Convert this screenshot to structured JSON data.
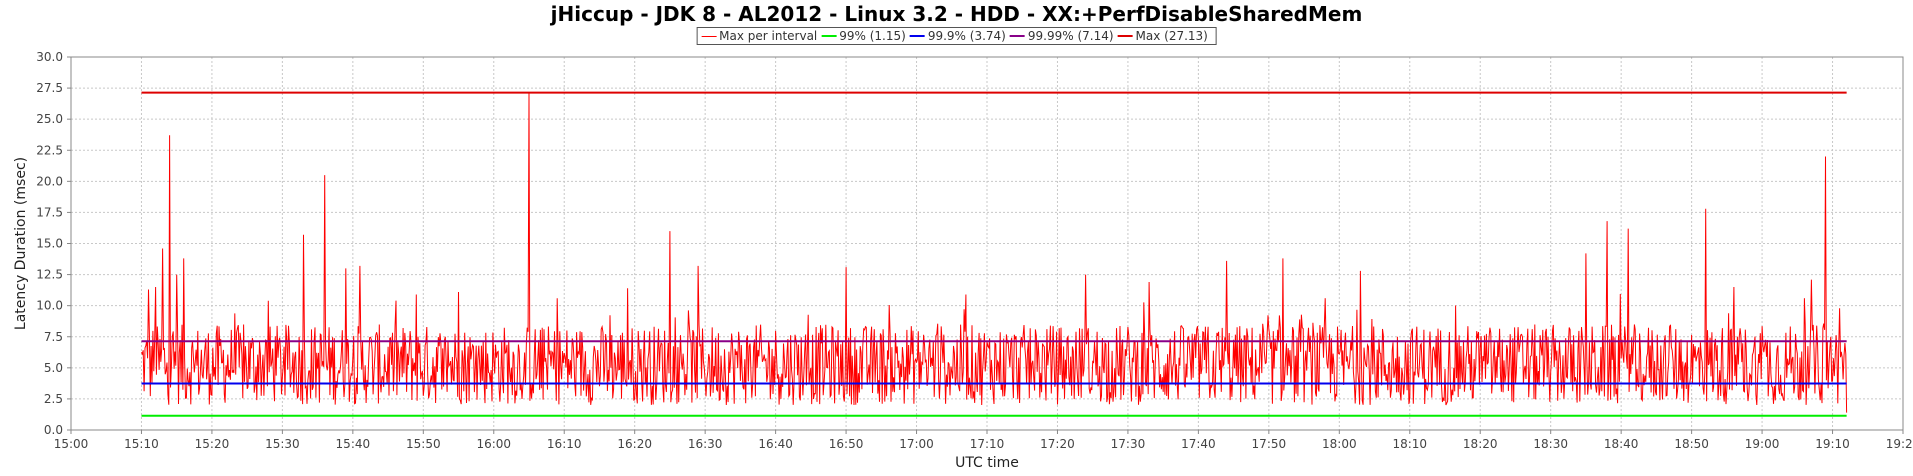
{
  "chart_data": {
    "type": "line",
    "title": "jHiccup - JDK 8 - AL2012 - Linux 3.2 - HDD - XX:+PerfDisableSharedMem",
    "xlabel": "UTC time",
    "ylabel": "Latency Duration (msec)",
    "ylim": [
      0,
      30
    ],
    "xlim": [
      "15:00",
      "19:20"
    ],
    "x_ticks": [
      "15:00",
      "15:10",
      "15:20",
      "15:30",
      "15:40",
      "15:50",
      "16:00",
      "16:10",
      "16:20",
      "16:30",
      "16:40",
      "16:50",
      "17:00",
      "17:10",
      "17:20",
      "17:30",
      "17:40",
      "17:50",
      "18:00",
      "18:10",
      "18:20",
      "18:30",
      "18:40",
      "18:50",
      "19:00",
      "19:10",
      "19:20"
    ],
    "y_ticks": [
      "0.0",
      "2.5",
      "5.0",
      "7.5",
      "10.0",
      "12.5",
      "15.0",
      "17.5",
      "20.0",
      "22.5",
      "25.0",
      "27.5",
      "30.0"
    ],
    "grid": true,
    "legend_position": "top-center",
    "series_range": [
      "15:10",
      "19:12"
    ],
    "series": [
      {
        "name": "Max per interval",
        "color": "#ff0000",
        "spikes": [
          {
            "t": "15:11",
            "v": 11.3
          },
          {
            "t": "15:12",
            "v": 11.5
          },
          {
            "t": "15:13",
            "v": 14.6
          },
          {
            "t": "15:14",
            "v": 23.7
          },
          {
            "t": "15:15",
            "v": 12.5
          },
          {
            "t": "15:16",
            "v": 13.8
          },
          {
            "t": "15:28",
            "v": 10.4
          },
          {
            "t": "15:33",
            "v": 15.7
          },
          {
            "t": "15:36",
            "v": 20.5
          },
          {
            "t": "15:39",
            "v": 13.0
          },
          {
            "t": "15:41",
            "v": 13.2
          },
          {
            "t": "15:49",
            "v": 10.9
          },
          {
            "t": "15:55",
            "v": 11.1
          },
          {
            "t": "16:05",
            "v": 27.1
          },
          {
            "t": "16:09",
            "v": 10.6
          },
          {
            "t": "16:19",
            "v": 11.4
          },
          {
            "t": "16:25",
            "v": 16.0
          },
          {
            "t": "16:29",
            "v": 13.2
          },
          {
            "t": "16:50",
            "v": 13.1
          },
          {
            "t": "17:07",
            "v": 10.9
          },
          {
            "t": "17:24",
            "v": 12.5
          },
          {
            "t": "17:33",
            "v": 11.9
          },
          {
            "t": "17:44",
            "v": 13.6
          },
          {
            "t": "17:52",
            "v": 13.8
          },
          {
            "t": "17:58",
            "v": 10.6
          },
          {
            "t": "18:03",
            "v": 12.8
          },
          {
            "t": "18:35",
            "v": 14.2
          },
          {
            "t": "18:38",
            "v": 16.8
          },
          {
            "t": "18:41",
            "v": 16.2
          },
          {
            "t": "18:52",
            "v": 17.8
          },
          {
            "t": "18:56",
            "v": 11.5
          },
          {
            "t": "19:06",
            "v": 10.6
          },
          {
            "t": "19:07",
            "v": 12.1
          },
          {
            "t": "19:09",
            "v": 22.0
          },
          {
            "t": "19:11",
            "v": 9.8
          },
          {
            "t": "19:12",
            "v": 1.4
          }
        ],
        "typical_range": [
          2.0,
          8.5
        ]
      },
      {
        "name": "99% (1.15)",
        "color": "#00ee00",
        "value": 1.15
      },
      {
        "name": "99.9% (3.74)",
        "color": "#0000ee",
        "value": 3.74
      },
      {
        "name": "99.99% (7.14)",
        "color": "#880088",
        "value": 7.14
      },
      {
        "name": "Max (27.13)",
        "color": "#dd0000",
        "value": 27.13
      }
    ]
  }
}
